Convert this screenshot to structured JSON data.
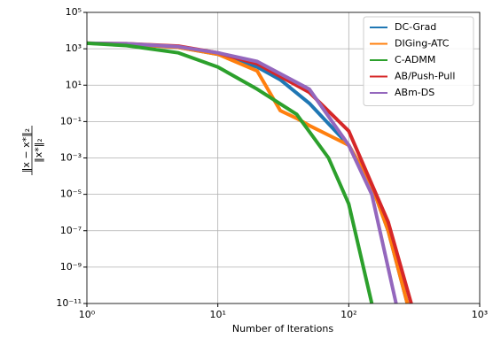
{
  "chart_data": {
    "type": "line",
    "xlabel": "Number of Iterations",
    "ylabel": {
      "numerator": "‖x − x*‖₂",
      "denominator": "‖x*‖₂"
    },
    "xscale": "log",
    "yscale": "log",
    "grid": true,
    "legend": "upper right",
    "xlim": [
      1,
      1000
    ],
    "xticks": [
      {
        "value": 1,
        "label": "10⁰"
      },
      {
        "value": 10,
        "label": "10¹"
      },
      {
        "value": 100,
        "label": "10²"
      },
      {
        "value": 1000,
        "label": "10³"
      }
    ],
    "ylim": [
      1e-11,
      100000
    ],
    "yticks": [
      {
        "value": 1e-11,
        "label": "10⁻¹¹"
      },
      {
        "value": 1e-09,
        "label": "10⁻⁹"
      },
      {
        "value": 1e-07,
        "label": "10⁻⁷"
      },
      {
        "value": 1e-05,
        "label": "10⁻⁵"
      },
      {
        "value": 0.001,
        "label": "10⁻³"
      },
      {
        "value": 0.1,
        "label": "10⁻¹"
      },
      {
        "value": 10,
        "label": "10¹"
      },
      {
        "value": 1000,
        "label": "10³"
      },
      {
        "value": 100000,
        "label": "10⁵"
      }
    ],
    "series": [
      {
        "name": "DC-Grad",
        "color": "#1f77b4",
        "x": [
          1,
          2,
          5,
          10,
          20,
          30,
          50,
          100,
          150,
          200,
          280
        ],
        "values": [
          2000,
          1800,
          1200,
          500,
          100,
          20,
          1,
          0.005,
          3e-05,
          1e-07,
          1e-11
        ]
      },
      {
        "name": "DIGing-ATC",
        "color": "#ff7f0e",
        "x": [
          1,
          2,
          5,
          10,
          20,
          30,
          40,
          50,
          100,
          150,
          200,
          280
        ],
        "values": [
          2000,
          1800,
          1200,
          500,
          60,
          0.4,
          0.15,
          0.06,
          0.005,
          3e-05,
          1e-07,
          1e-11
        ]
      },
      {
        "name": "C-ADMM",
        "color": "#2ca02c",
        "x": [
          1,
          2,
          5,
          10,
          20,
          40,
          70,
          100,
          150
        ],
        "values": [
          2000,
          1500,
          600,
          100,
          6,
          0.25,
          0.001,
          3e-06,
          1e-11
        ]
      },
      {
        "name": "AB/Push-Pull",
        "color": "#d62728",
        "x": [
          1,
          2,
          5,
          10,
          20,
          50,
          100,
          200,
          300
        ],
        "values": [
          2000,
          1900,
          1400,
          600,
          150,
          4,
          0.03,
          3e-07,
          1e-11
        ]
      },
      {
        "name": "ABm-DS",
        "color": "#9467bd",
        "x": [
          1,
          2,
          5,
          10,
          20,
          50,
          100,
          150,
          230
        ],
        "values": [
          2000,
          1900,
          1300,
          600,
          200,
          6,
          0.005,
          1e-05,
          1e-11
        ]
      }
    ]
  }
}
